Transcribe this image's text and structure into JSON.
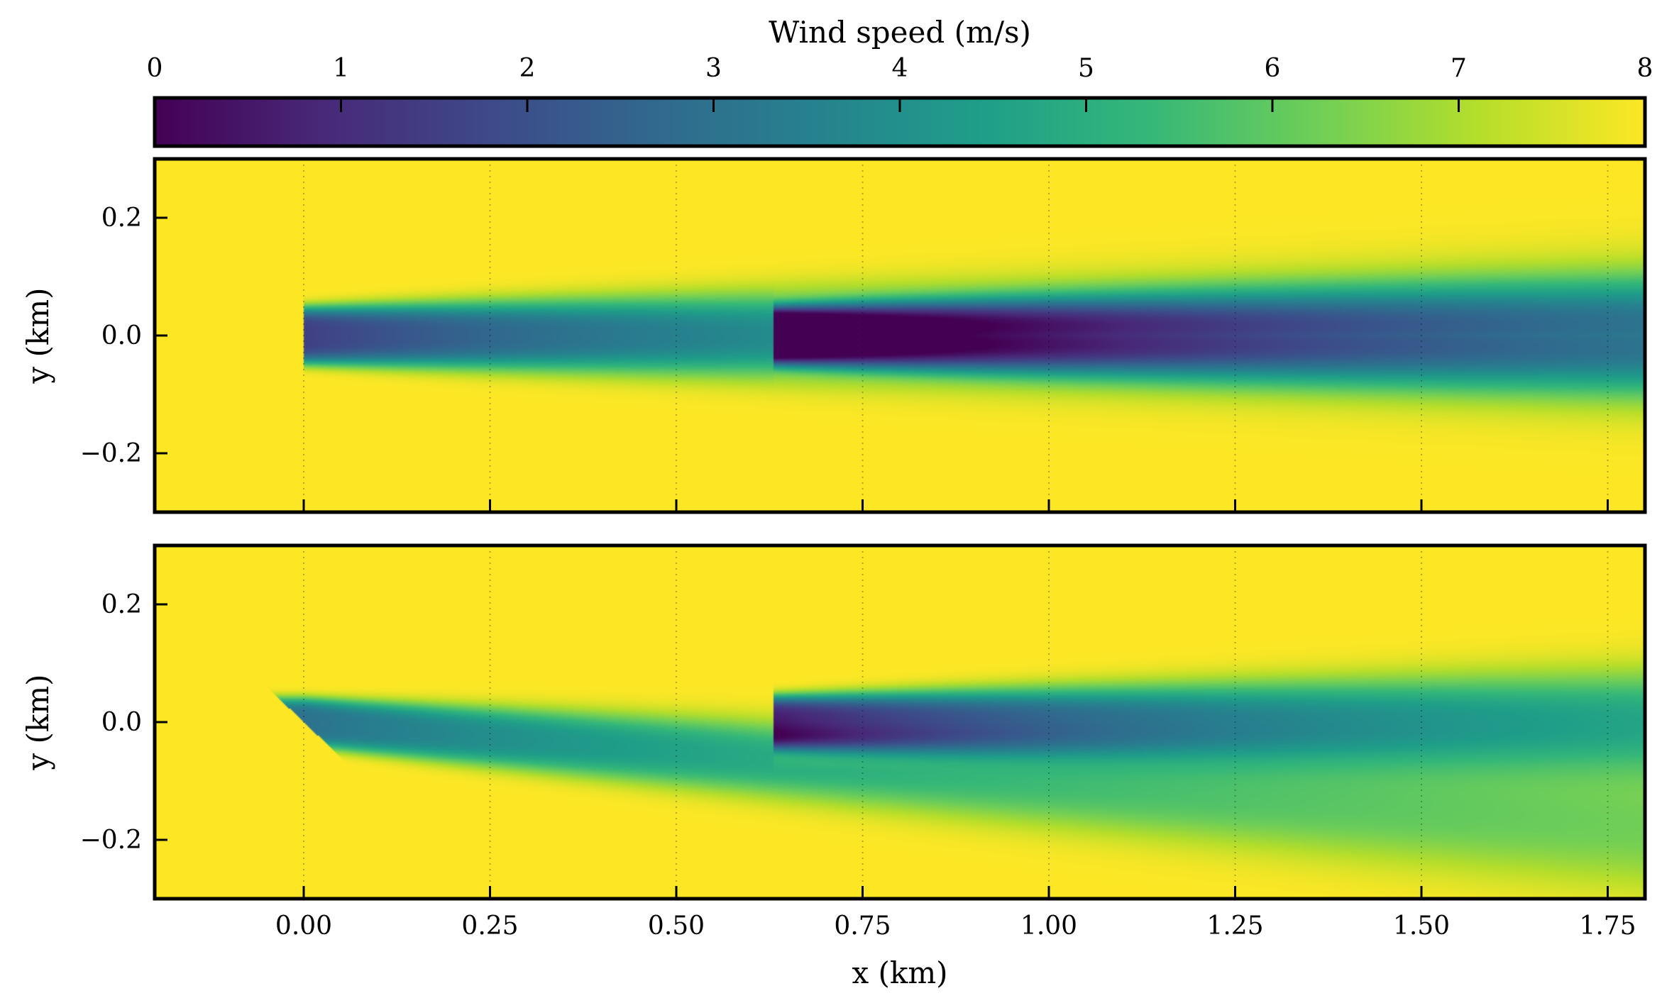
{
  "chart_data": {
    "type": "heatmap",
    "colorbar": {
      "label": "Wind speed (m/s)",
      "range": [
        0,
        8
      ],
      "ticks": [
        0,
        1,
        2,
        3,
        4,
        5,
        6,
        7,
        8
      ],
      "tick_labels": [
        "0",
        "1",
        "2",
        "3",
        "4",
        "5",
        "6",
        "7",
        "8"
      ],
      "colormap": "viridis",
      "colormap_stops": [
        "#440154",
        "#482878",
        "#3e4989",
        "#31688e",
        "#26828e",
        "#1f9e89",
        "#35b779",
        "#6ece58",
        "#b5de2b",
        "#fde725"
      ],
      "placement": "top"
    },
    "xlabel": "x (km)",
    "xlim": [
      -0.2,
      1.8
    ],
    "xticks": [
      0.0,
      0.25,
      0.5,
      0.75,
      1.0,
      1.25,
      1.5,
      1.75
    ],
    "xtick_labels": [
      "0.00",
      "0.25",
      "0.50",
      "0.75",
      "1.00",
      "1.25",
      "1.50",
      "1.75"
    ],
    "grid": "vertical dotted",
    "freestream_speed": 8,
    "panels": [
      {
        "ylabel": "y (km)",
        "ylim": [
          -0.3,
          0.3
        ],
        "yticks": [
          0.2,
          0.0,
          -0.2
        ],
        "ytick_labels": [
          "0.2",
          "0.0",
          "−0.2"
        ],
        "turbines": [
          {
            "x": 0.0,
            "y": 0.0,
            "yaw": "aligned",
            "wake_deficit_ms": 6.5,
            "wake_half_width_km": 0.07,
            "wake_deflection_per_km": 0.0
          },
          {
            "x": 0.63,
            "y": 0.0,
            "yaw": "aligned",
            "wake_deficit_ms": 7.8,
            "wake_half_width_km": 0.07,
            "wake_deflection_per_km": 0.0
          }
        ]
      },
      {
        "ylabel": "y (km)",
        "ylim": [
          -0.3,
          0.3
        ],
        "yticks": [
          0.2,
          0.0,
          -0.2
        ],
        "ytick_labels": [
          "0.2",
          "0.0",
          "−0.2"
        ],
        "turbines": [
          {
            "x": 0.0,
            "y": 0.0,
            "yaw": "yawed",
            "rotor_tilt_km": 0.05,
            "wake_deficit_ms": 5.0,
            "wake_half_width_km": 0.06,
            "wake_deflection_per_km": -0.1
          },
          {
            "x": 0.63,
            "y": 0.0,
            "yaw": "aligned",
            "wake_deficit_ms": 7.0,
            "wake_half_width_km": 0.065,
            "wake_deflection_per_km": 0.0
          }
        ]
      }
    ]
  }
}
